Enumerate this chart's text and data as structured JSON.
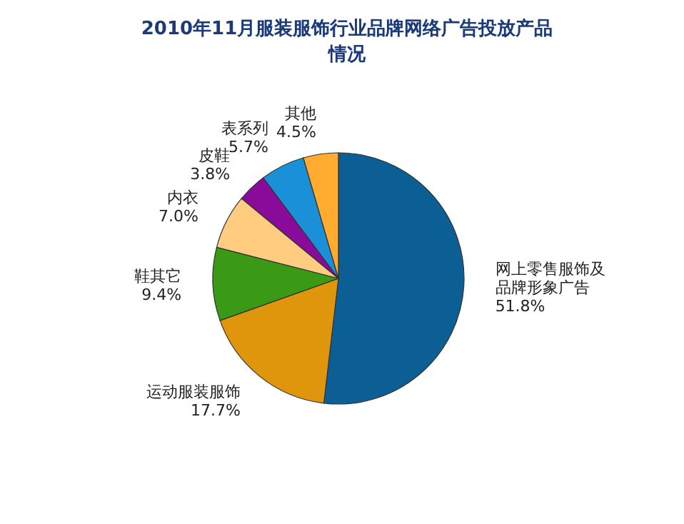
{
  "chart_data": {
    "type": "pie",
    "title": "2010年11月服装服饰行业品牌网络广告投放产品情况",
    "categories": [
      "网上零售服饰及品牌形象广告",
      "运动服装服饰",
      "鞋其它",
      "内衣",
      "皮鞋",
      "表系列",
      "其他"
    ],
    "values": [
      51.8,
      17.7,
      9.4,
      7.0,
      3.8,
      5.7,
      4.5
    ],
    "colors": [
      "#0b5f95",
      "#e0960c",
      "#3a9a16",
      "#ffcc80",
      "#8a0a9a",
      "#1a90d8",
      "#ffac30"
    ],
    "value_labels": [
      "51.8%",
      "17.7%",
      "9.4%",
      "7.0%",
      "3.8%",
      "5.7%",
      "4.5%"
    ]
  }
}
